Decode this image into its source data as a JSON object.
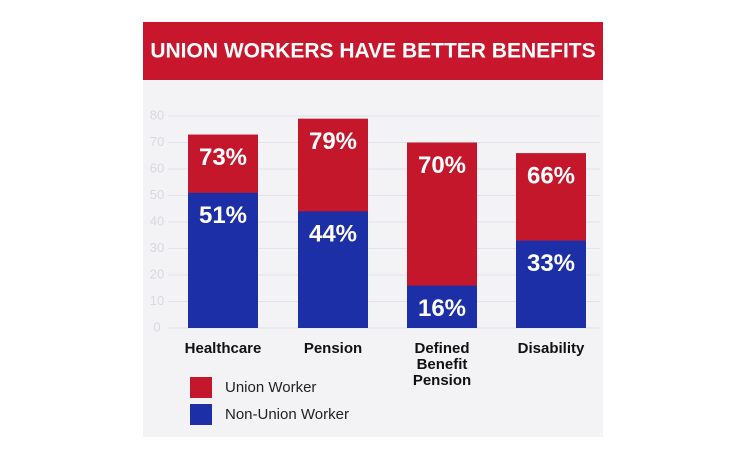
{
  "chart_data": {
    "type": "overlap-bar",
    "title": "UNION WORKERS HAVE BETTER BENEFITS",
    "categories": [
      "Healthcare",
      "Pension",
      "Defined Benefit Pension",
      "Disability"
    ],
    "series": [
      {
        "name": "Union Worker",
        "color": "#c4172c",
        "values": [
          73,
          79,
          70,
          66
        ],
        "value_labels": [
          "73%",
          "79%",
          "70%",
          "66%"
        ]
      },
      {
        "name": "Non-Union Worker",
        "color": "#1c2fa6",
        "values": [
          51,
          44,
          16,
          33
        ],
        "value_labels": [
          "51%",
          "44%",
          "16%",
          "33%"
        ]
      }
    ],
    "ylim": [
      0,
      80
    ],
    "yticks": [
      0,
      10,
      20,
      30,
      40,
      50,
      60,
      70,
      80
    ],
    "grid": true
  }
}
